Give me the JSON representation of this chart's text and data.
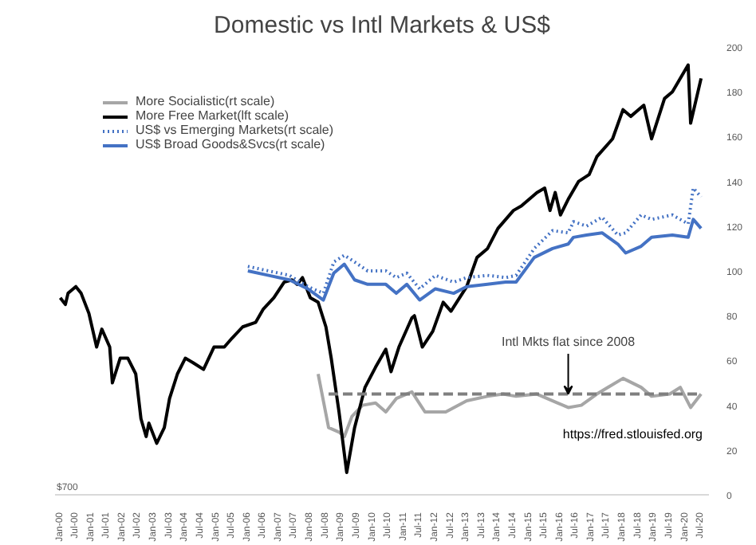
{
  "chart_data": {
    "type": "line",
    "title": "Domestic vs Intl Markets & US$",
    "xlim": [
      "1999-11",
      "2020-10"
    ],
    "xticks": [
      {
        "value": "2000-01",
        "label": "Jan-00"
      },
      {
        "value": "2000-07",
        "label": "Jul-00"
      },
      {
        "value": "2001-01",
        "label": "Jan-01"
      },
      {
        "value": "2001-07",
        "label": "Jul-01"
      },
      {
        "value": "2002-01",
        "label": "Jan-02"
      },
      {
        "value": "2002-07",
        "label": "Jul-02"
      },
      {
        "value": "2003-01",
        "label": "Jan-03"
      },
      {
        "value": "2003-07",
        "label": "Jul-03"
      },
      {
        "value": "2004-01",
        "label": "Jan-04"
      },
      {
        "value": "2004-07",
        "label": "Jul-04"
      },
      {
        "value": "2005-01",
        "label": "Jan-05"
      },
      {
        "value": "2005-07",
        "label": "Jul-05"
      },
      {
        "value": "2006-01",
        "label": "Jan-06"
      },
      {
        "value": "2006-07",
        "label": "Jul-06"
      },
      {
        "value": "2007-01",
        "label": "Jan-07"
      },
      {
        "value": "2007-07",
        "label": "Jul-07"
      },
      {
        "value": "2008-01",
        "label": "Jan-08"
      },
      {
        "value": "2008-07",
        "label": "Jul-08"
      },
      {
        "value": "2009-01",
        "label": "Jan-09"
      },
      {
        "value": "2009-07",
        "label": "Jul-09"
      },
      {
        "value": "2010-01",
        "label": "Jan-10"
      },
      {
        "value": "2010-07",
        "label": "Jul-10"
      },
      {
        "value": "2011-01",
        "label": "Jan-11"
      },
      {
        "value": "2011-07",
        "label": "Jul-11"
      },
      {
        "value": "2012-01",
        "label": "Jan-12"
      },
      {
        "value": "2012-07",
        "label": "Jul-12"
      },
      {
        "value": "2013-01",
        "label": "Jan-13"
      },
      {
        "value": "2013-07",
        "label": "Jul-13"
      },
      {
        "value": "2014-01",
        "label": "Jan-14"
      },
      {
        "value": "2014-07",
        "label": "Jul-14"
      },
      {
        "value": "2015-01",
        "label": "Jan-15"
      },
      {
        "value": "2015-07",
        "label": "Jul-15"
      },
      {
        "value": "2016-01",
        "label": "Jan-16"
      },
      {
        "value": "2016-07",
        "label": "Jul-16"
      },
      {
        "value": "2017-01",
        "label": "Jan-17"
      },
      {
        "value": "2017-07",
        "label": "Jul-17"
      },
      {
        "value": "2018-01",
        "label": "Jan-18"
      },
      {
        "value": "2018-07",
        "label": "Jul-18"
      },
      {
        "value": "2019-01",
        "label": "Jan-19"
      },
      {
        "value": "2019-07",
        "label": "Jul-19"
      },
      {
        "value": "2020-01",
        "label": "Jan-20"
      },
      {
        "value": "2020-07",
        "label": "Jul-20"
      }
    ],
    "ylim": [
      0,
      200
    ],
    "yticks": [
      0,
      20,
      40,
      60,
      80,
      100,
      120,
      140,
      160,
      180,
      200
    ],
    "legend": "top left",
    "series": [
      {
        "name": "More Socialistic(rt scale)",
        "color": "#a6a6a6",
        "x": [
          "2008-04",
          "2008-08",
          "2008-12",
          "2009-02",
          "2009-05",
          "2009-09",
          "2010-02",
          "2010-06",
          "2010-10",
          "2011-04",
          "2011-09",
          "2012-05",
          "2013-01",
          "2013-09",
          "2014-03",
          "2014-08",
          "2015-04",
          "2015-12",
          "2016-04",
          "2016-09",
          "2017-03",
          "2018-01",
          "2018-08",
          "2018-12",
          "2019-07",
          "2019-11",
          "2020-03",
          "2020-07"
        ],
        "values": [
          54,
          30,
          28,
          26,
          35,
          40,
          41,
          37,
          43,
          46,
          37,
          37,
          42,
          44,
          45,
          44,
          45,
          41,
          39,
          40,
          45,
          52,
          48,
          44,
          45,
          48,
          39,
          45
        ]
      },
      {
        "name": "More Free Market(lft scale)",
        "color": "#000000",
        "x": [
          "2000-01",
          "2000-03",
          "2000-04",
          "2000-07",
          "2000-09",
          "2000-12",
          "2001-03",
          "2001-05",
          "2001-08",
          "2001-09",
          "2001-12",
          "2002-03",
          "2002-06",
          "2002-08",
          "2002-10",
          "2002-11",
          "2003-02",
          "2003-05",
          "2003-07",
          "2003-10",
          "2004-01",
          "2004-04",
          "2004-08",
          "2004-12",
          "2005-04",
          "2005-07",
          "2005-11",
          "2006-04",
          "2006-07",
          "2006-11",
          "2007-03",
          "2007-06",
          "2007-08",
          "2007-10",
          "2008-01",
          "2008-04",
          "2008-07",
          "2008-09",
          "2008-12",
          "2009-03",
          "2009-06",
          "2009-10",
          "2010-02",
          "2010-06",
          "2010-08",
          "2010-11",
          "2011-04",
          "2011-05",
          "2011-08",
          "2011-12",
          "2012-04",
          "2012-07",
          "2013-01",
          "2013-05",
          "2013-09",
          "2014-01",
          "2014-07",
          "2014-10",
          "2015-04",
          "2015-07",
          "2015-09",
          "2015-11",
          "2016-01",
          "2016-04",
          "2016-08",
          "2016-12",
          "2017-03",
          "2017-09",
          "2018-01",
          "2018-04",
          "2018-09",
          "2018-12",
          "2019-05",
          "2019-08",
          "2020-02",
          "2020-03",
          "2020-07"
        ],
        "values": [
          88,
          85,
          90,
          93,
          90,
          81,
          66,
          74,
          66,
          50,
          61,
          61,
          54,
          34,
          26,
          32,
          23,
          30,
          43,
          54,
          61,
          59,
          56,
          66,
          66,
          70,
          75,
          77,
          83,
          88,
          95,
          96,
          94,
          97,
          88,
          86,
          75,
          61,
          37,
          10,
          30,
          48,
          57,
          65,
          55,
          66,
          79,
          80,
          66,
          73,
          86,
          82,
          93,
          106,
          110,
          119,
          127,
          129,
          135,
          137,
          127,
          135,
          125,
          132,
          140,
          143,
          151,
          159,
          172,
          169,
          174,
          159,
          177,
          180,
          192,
          166,
          186
        ]
      },
      {
        "name": "US$ vs Emerging Markets(rt scale)",
        "color": "#4472c4",
        "line_style": "dotted",
        "x": [
          "2006-01",
          "2006-09",
          "2007-05",
          "2007-12",
          "2008-06",
          "2008-10",
          "2009-02",
          "2009-06",
          "2009-11",
          "2010-06",
          "2010-10",
          "2011-02",
          "2011-07",
          "2012-01",
          "2012-08",
          "2013-01",
          "2013-09",
          "2014-04",
          "2014-08",
          "2015-03",
          "2015-10",
          "2016-04",
          "2016-06",
          "2016-11",
          "2017-05",
          "2017-11",
          "2018-02",
          "2018-08",
          "2018-12",
          "2019-08",
          "2020-02",
          "2020-04",
          "2020-07"
        ],
        "values": [
          102,
          100,
          98,
          93,
          90,
          104,
          107,
          104,
          100,
          100,
          97,
          99,
          92,
          98,
          95,
          97,
          98,
          97,
          98,
          110,
          118,
          117,
          122,
          120,
          124,
          116,
          117,
          125,
          123,
          125,
          121,
          137,
          133
        ]
      },
      {
        "name": "US$ Broad Goods&Svcs(rt scale)",
        "color": "#4472c4",
        "x": [
          "2006-01",
          "2006-09",
          "2007-05",
          "2007-12",
          "2008-06",
          "2008-10",
          "2009-02",
          "2009-06",
          "2009-11",
          "2010-06",
          "2010-10",
          "2011-02",
          "2011-07",
          "2012-01",
          "2012-08",
          "2013-01",
          "2013-09",
          "2014-04",
          "2014-08",
          "2015-03",
          "2015-10",
          "2016-04",
          "2016-06",
          "2016-11",
          "2017-05",
          "2017-11",
          "2018-02",
          "2018-08",
          "2018-12",
          "2019-08",
          "2020-02",
          "2020-04",
          "2020-07"
        ],
        "values": [
          100,
          98,
          96,
          92,
          87,
          99,
          103,
          96,
          94,
          94,
          90,
          94,
          87,
          92,
          90,
          93,
          94,
          95,
          95,
          106,
          110,
          112,
          115,
          116,
          117,
          112,
          108,
          111,
          115,
          116,
          115,
          123,
          119
        ]
      },
      {
        "color": "#7f7f7f",
        "line_style": "dashed",
        "x": [
          "2008-08",
          "2020-07"
        ],
        "values": [
          45,
          45
        ]
      }
    ],
    "annotations": [
      {
        "text": "Intl Mkts flat since 2008",
        "x": "2016-04",
        "y": 45
      },
      "$700",
      "https://fred.stlouisfed.org"
    ]
  }
}
